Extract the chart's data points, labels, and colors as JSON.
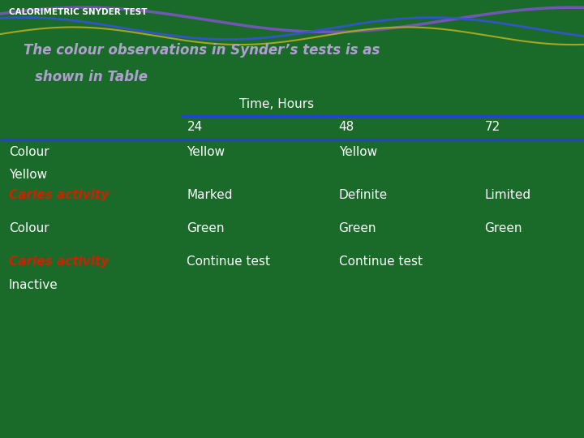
{
  "title": "CALORIMETRIC SNYDER TEST",
  "subtitle_line1": "The colour observations in Synder’s tests is as",
  "subtitle_line2": "shown in Table",
  "bg_color": "#1a6b2a",
  "title_color": "#ffffff",
  "subtitle_color": "#b0a0d0",
  "header_main": "Time, Hours",
  "col_headers": [
    "24",
    "48",
    "72"
  ],
  "row1_data": [
    "Yellow",
    "Yellow",
    ""
  ],
  "row2_data": [
    "Marked",
    "Definite",
    "Limited"
  ],
  "row3_data": [
    "Green",
    "Green",
    "Green"
  ],
  "row4_data": [
    "Continue test",
    "Continue test",
    ""
  ],
  "line_color": "#2244cc",
  "white": "#ffffff",
  "red": "#cc2200"
}
